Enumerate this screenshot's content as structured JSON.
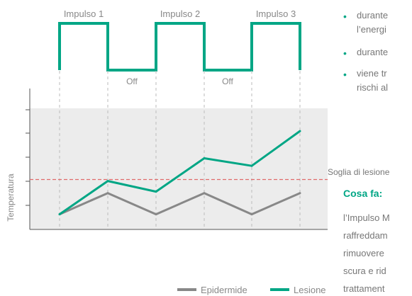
{
  "chart_data": {
    "type": "line",
    "pulse_labels": [
      "Impulso 1",
      "Impulso 2",
      "Impulso 3"
    ],
    "off_labels": [
      "Off",
      "Off"
    ],
    "x": [
      0,
      1,
      2,
      3,
      4,
      5
    ],
    "series": [
      {
        "name": "Epidermide",
        "color": "#888888",
        "values": [
          1.0,
          2.4,
          1.0,
          2.4,
          1.0,
          2.4
        ]
      },
      {
        "name": "Lesione",
        "color": "#00a685",
        "values": [
          1.0,
          3.2,
          2.5,
          4.7,
          4.2,
          6.5
        ]
      }
    ],
    "threshold": {
      "value": 3.3,
      "label": "Soglia di lesione",
      "color": "#e06a6a"
    },
    "ylabel": "Temperatura",
    "ylim": [
      0,
      8
    ],
    "background": "#ececec"
  },
  "side_text": {
    "bullets": [
      "durante",
      "l’energi",
      "durante",
      "viene tr",
      "rischi al"
    ],
    "section_title": "Cosa fa:",
    "paragraph": [
      "l’Impulso M",
      "raffreddam",
      "rimuovere",
      "scura e rid",
      "trattament"
    ]
  },
  "colors": {
    "accent": "#00a685",
    "epidermis": "#888888",
    "grid_dash": "#bbbbbb"
  }
}
